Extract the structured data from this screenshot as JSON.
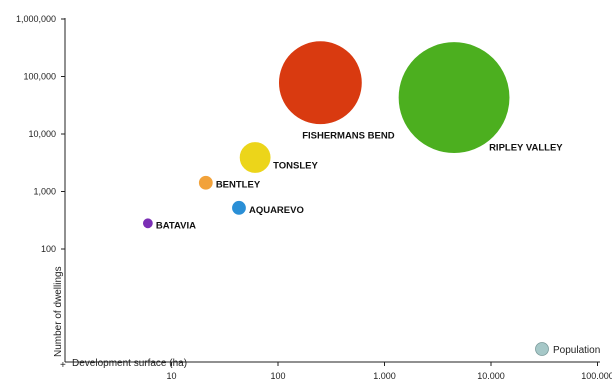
{
  "chart_data": {
    "type": "scatter",
    "variant": "bubble",
    "scale_x": "log",
    "scale_y": "log",
    "xlabel": "Development surface (ha)",
    "ylabel": "Number of dwellings",
    "x_axis_prefix": "+",
    "xlim": [
      1,
      100000
    ],
    "ylim": [
      1,
      1000000
    ],
    "x_ticks": [
      {
        "value": 10,
        "label": "10"
      },
      {
        "value": 100,
        "label": "100"
      },
      {
        "value": 1000,
        "label": "1.000"
      },
      {
        "value": 10000,
        "label": "10.000"
      },
      {
        "value": 100000,
        "label": "100.000"
      }
    ],
    "y_ticks": [
      {
        "value": 100,
        "label": "100"
      },
      {
        "value": 1000,
        "label": "1,000"
      },
      {
        "value": 10000,
        "label": "10,000"
      },
      {
        "value": 100000,
        "label": "100,000"
      },
      {
        "value": 1000000,
        "label": "1,000,000"
      }
    ],
    "grid": false,
    "size_legend": {
      "label": "Population",
      "color": "#a6c8c8"
    },
    "points": [
      {
        "name": "BATAVIA",
        "x": 6,
        "y": 280,
        "size_rank": 1,
        "color": "#7b2fb5"
      },
      {
        "name": "AQUAREVO",
        "x": 43,
        "y": 520,
        "size_rank": 2,
        "color": "#2a8fd6"
      },
      {
        "name": "BENTLEY",
        "x": 21,
        "y": 1420,
        "size_rank": 2,
        "color": "#f2a23a"
      },
      {
        "name": "TONSLEY",
        "x": 61,
        "y": 3900,
        "size_rank": 3,
        "color": "#ecd51a"
      },
      {
        "name": "FISHERMANS BEND",
        "x": 250,
        "y": 78000,
        "size_rank": 5,
        "color": "#d93a10"
      },
      {
        "name": "RIPLEY VALLEY",
        "x": 4500,
        "y": 43000,
        "size_rank": 6,
        "color": "#4caf1f"
      }
    ]
  }
}
